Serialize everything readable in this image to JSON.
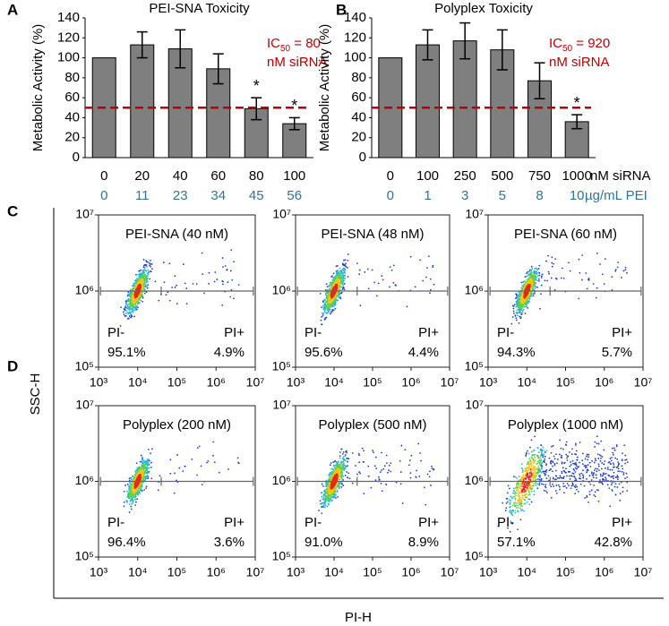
{
  "chart_data": [
    {
      "type": "bar",
      "label": "A",
      "title": "PEI-SNA Toxicity",
      "y_label": "Metabolic Activity (%)",
      "categories": [
        "0",
        "20",
        "40",
        "60",
        "80",
        "100"
      ],
      "secondary_categories": [
        "0",
        "11",
        "23",
        "34",
        "45",
        "56"
      ],
      "values": [
        100,
        113,
        109,
        89,
        49,
        34
      ],
      "errors": [
        0,
        13,
        19,
        15,
        11,
        6
      ],
      "significant": [
        false,
        false,
        false,
        false,
        true,
        true
      ],
      "significance_marker": "*",
      "color": "#7f7f7f",
      "reference_line": 50,
      "reference_color": "#c00000",
      "ic50": {
        "prefix": "IC",
        "sub": "50",
        "text": " = 80",
        "line2": "nM siRNA"
      },
      "ylim": [
        0,
        140
      ],
      "yticks": [
        0,
        20,
        40,
        60,
        80,
        100,
        120,
        140
      ]
    },
    {
      "type": "bar",
      "label": "B",
      "title": "Polyplex Toxicity",
      "y_label": "Metabolic Activity (%)",
      "categories": [
        "0",
        "100",
        "250",
        "500",
        "750",
        "1000"
      ],
      "secondary_categories": [
        "0",
        "1",
        "3",
        "5",
        "8",
        "10"
      ],
      "category_units": [
        "nM siRNA",
        "µg/mL PEI"
      ],
      "values": [
        100,
        113,
        117,
        108,
        77,
        36
      ],
      "errors": [
        0,
        15,
        18,
        20,
        18,
        7
      ],
      "significant": [
        false,
        false,
        false,
        false,
        false,
        true
      ],
      "significance_marker": "*",
      "color": "#7f7f7f",
      "reference_line": 50,
      "reference_color": "#c00000",
      "ic50": {
        "prefix": "IC",
        "sub": "50",
        "text": " = 920",
        "line2": "nM siRNA"
      },
      "ylim": [
        0,
        140
      ],
      "yticks": [
        0,
        20,
        40,
        60,
        80,
        100,
        120,
        140
      ]
    },
    {
      "type": "flow",
      "title": "PEI-SNA (40 nM)",
      "gate_labels": [
        "PI-",
        "PI+"
      ],
      "values": [
        95.1,
        4.9
      ],
      "value_labels": [
        "95.1%",
        "4.9%"
      ]
    },
    {
      "type": "flow",
      "title": "PEI-SNA (48 nM)",
      "gate_labels": [
        "PI-",
        "PI+"
      ],
      "values": [
        95.6,
        4.4
      ],
      "value_labels": [
        "95.6%",
        "4.4%"
      ]
    },
    {
      "type": "flow",
      "title": "PEI-SNA (60 nM)",
      "gate_labels": [
        "PI-",
        "PI+"
      ],
      "values": [
        94.3,
        5.7
      ],
      "value_labels": [
        "94.3%",
        "5.7%"
      ]
    },
    {
      "type": "flow",
      "title": "Polyplex (200 nM)",
      "gate_labels": [
        "PI-",
        "PI+"
      ],
      "values": [
        96.4,
        3.6
      ],
      "value_labels": [
        "96.4%",
        "3.6%"
      ]
    },
    {
      "type": "flow",
      "title": "Polyplex (500 nM)",
      "gate_labels": [
        "PI-",
        "PI+"
      ],
      "values": [
        91.0,
        8.9
      ],
      "value_labels": [
        "91.0%",
        "8.9%"
      ]
    },
    {
      "type": "flow",
      "title": "Polyplex (1000 nM)",
      "gate_labels": [
        "PI-",
        "PI+"
      ],
      "values": [
        57.1,
        42.8
      ],
      "value_labels": [
        "57.1%",
        "42.8%"
      ]
    }
  ],
  "flow_axes": {
    "row_labels": [
      "C",
      "D"
    ],
    "x_label": "PI-H",
    "y_label": "SSC-H",
    "log": true,
    "xlim": [
      1000,
      10000000
    ],
    "ylim": [
      100000,
      10000000
    ],
    "xticks": [
      {
        "value": 1000,
        "label": "10³"
      },
      {
        "value": 10000,
        "label": "10⁴"
      },
      {
        "value": 100000,
        "label": "10⁵"
      },
      {
        "value": 1000000,
        "label": "10⁶"
      },
      {
        "value": 10000000,
        "label": "10⁷"
      }
    ],
    "yticks": [
      {
        "value": 100000,
        "label": "10⁵"
      },
      {
        "value": 1000000,
        "label": "10⁶"
      },
      {
        "value": 10000000,
        "label": "10⁷"
      }
    ]
  }
}
